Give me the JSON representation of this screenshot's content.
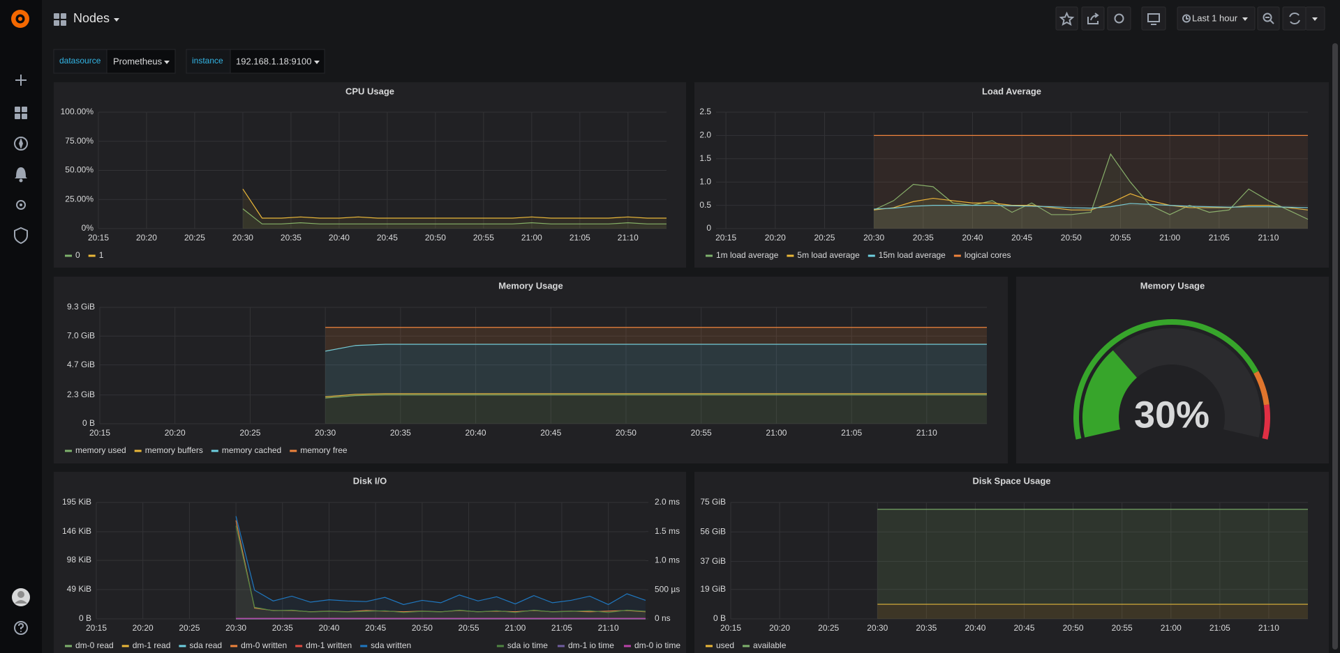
{
  "header": {
    "title": "Nodes",
    "time_range": "Last 1 hour"
  },
  "variables": [
    {
      "label": "datasource",
      "value": "Prometheus"
    },
    {
      "label": "instance",
      "value": "192.168.1.18:9100"
    }
  ],
  "chart_data": [
    {
      "type": "line",
      "title": "CPU Usage",
      "grid": true,
      "x": [
        "20:30",
        "20:32",
        "20:34",
        "20:36",
        "20:38",
        "20:40",
        "20:42",
        "20:44",
        "20:46",
        "20:48",
        "20:50",
        "20:52",
        "20:54",
        "20:56",
        "20:58",
        "21:00",
        "21:02",
        "21:04",
        "21:06",
        "21:08",
        "21:10",
        "21:12",
        "21:14"
      ],
      "xlim": [
        "20:15",
        "21:14"
      ],
      "xticks": [
        "20:15",
        "20:20",
        "20:25",
        "20:30",
        "20:35",
        "20:40",
        "20:45",
        "20:50",
        "20:55",
        "21:00",
        "21:05",
        "21:10"
      ],
      "ylim": [
        0,
        100
      ],
      "yticks": [
        {
          "value": 0,
          "label": "0%"
        },
        {
          "value": 25,
          "label": "25.00%"
        },
        {
          "value": 50,
          "label": "50.00%"
        },
        {
          "value": 75,
          "label": "75.00%"
        },
        {
          "value": 100,
          "label": "100.00%"
        }
      ],
      "series": [
        {
          "name": "0",
          "color": "#7eb26d",
          "values": [
            17,
            4,
            4,
            5,
            4,
            4,
            4,
            4,
            4,
            4,
            4,
            4,
            4,
            4,
            4,
            5,
            4,
            4,
            4,
            4,
            5,
            4,
            4
          ]
        },
        {
          "name": "1",
          "color": "#eab839",
          "values": [
            34,
            9,
            9,
            10,
            9,
            9,
            10,
            9,
            9,
            9,
            9,
            9,
            9,
            9,
            9,
            10,
            9,
            9,
            9,
            9,
            10,
            9,
            9
          ]
        }
      ]
    },
    {
      "type": "line",
      "title": "Load Average",
      "grid": true,
      "x": [
        "20:30",
        "20:32",
        "20:34",
        "20:36",
        "20:38",
        "20:40",
        "20:42",
        "20:44",
        "20:46",
        "20:48",
        "20:50",
        "20:52",
        "20:54",
        "20:56",
        "20:58",
        "21:00",
        "21:02",
        "21:04",
        "21:06",
        "21:08",
        "21:10",
        "21:12",
        "21:14"
      ],
      "xlim": [
        "20:14",
        "21:14"
      ],
      "xticks": [
        "20:15",
        "20:20",
        "20:25",
        "20:30",
        "20:35",
        "20:40",
        "20:45",
        "20:50",
        "20:55",
        "21:00",
        "21:05",
        "21:10"
      ],
      "ylim": [
        0,
        2.5
      ],
      "yticks": [
        0,
        0.5,
        {
          "value": 1,
          "label": "1.0"
        },
        1.5,
        {
          "value": 2,
          "label": "2.0"
        },
        2.5
      ],
      "series": [
        {
          "name": "1m load average",
          "color": "#7eb26d",
          "values": [
            0.4,
            0.6,
            0.95,
            0.9,
            0.55,
            0.5,
            0.6,
            0.35,
            0.55,
            0.3,
            0.3,
            0.35,
            1.6,
            1.0,
            0.5,
            0.3,
            0.5,
            0.35,
            0.4,
            0.85,
            0.6,
            0.4,
            0.2
          ]
        },
        {
          "name": "5m load average",
          "color": "#eab839",
          "values": [
            0.4,
            0.45,
            0.58,
            0.65,
            0.6,
            0.55,
            0.55,
            0.5,
            0.5,
            0.45,
            0.4,
            0.4,
            0.55,
            0.75,
            0.6,
            0.5,
            0.45,
            0.45,
            0.45,
            0.5,
            0.5,
            0.45,
            0.4
          ]
        },
        {
          "name": "15m load average",
          "color": "#6ed0e0",
          "values": [
            0.42,
            0.44,
            0.48,
            0.5,
            0.5,
            0.5,
            0.5,
            0.49,
            0.48,
            0.47,
            0.45,
            0.44,
            0.47,
            0.54,
            0.52,
            0.5,
            0.48,
            0.47,
            0.46,
            0.47,
            0.47,
            0.46,
            0.45
          ]
        },
        {
          "name": "logical cores",
          "color": "#ef843c",
          "values": [
            2,
            2,
            2,
            2,
            2,
            2,
            2,
            2,
            2,
            2,
            2,
            2,
            2,
            2,
            2,
            2,
            2,
            2,
            2,
            2,
            2,
            2,
            2
          ]
        }
      ]
    },
    {
      "type": "line",
      "title": "Memory Usage",
      "grid": true,
      "stacked": true,
      "x": [
        "20:30",
        "20:32",
        "20:34",
        "20:36",
        "20:38",
        "20:40",
        "20:42",
        "20:44",
        "20:46",
        "20:48",
        "20:50",
        "20:52",
        "20:54",
        "20:56",
        "20:58",
        "21:00",
        "21:02",
        "21:04",
        "21:06",
        "21:08",
        "21:10",
        "21:12",
        "21:14"
      ],
      "xlim": [
        "20:15",
        "21:14"
      ],
      "xticks": [
        "20:15",
        "20:20",
        "20:25",
        "20:30",
        "20:35",
        "20:40",
        "20:45",
        "20:50",
        "20:55",
        "21:00",
        "21:05",
        "21:10"
      ],
      "ylim": [
        0,
        9.3
      ],
      "yticks": [
        {
          "value": 0,
          "label": "0 B"
        },
        {
          "value": 2.3,
          "label": "2.3 GiB"
        },
        {
          "value": 4.7,
          "label": "4.7 GiB"
        },
        {
          "value": 7.0,
          "label": "7.0 GiB"
        },
        {
          "value": 9.3,
          "label": "9.3 GiB"
        }
      ],
      "series": [
        {
          "name": "memory used",
          "color": "#7eb26d",
          "values": [
            2.05,
            2.25,
            2.3,
            2.3,
            2.3,
            2.3,
            2.3,
            2.3,
            2.3,
            2.3,
            2.3,
            2.3,
            2.3,
            2.3,
            2.3,
            2.3,
            2.3,
            2.3,
            2.3,
            2.3,
            2.3,
            2.3,
            2.3
          ]
        },
        {
          "name": "memory buffers",
          "color": "#eab839",
          "values": [
            0.1,
            0.1,
            0.1,
            0.1,
            0.1,
            0.1,
            0.1,
            0.1,
            0.1,
            0.1,
            0.1,
            0.1,
            0.1,
            0.1,
            0.1,
            0.1,
            0.1,
            0.1,
            0.1,
            0.1,
            0.1,
            0.1,
            0.1
          ]
        },
        {
          "name": "memory cached",
          "color": "#6ed0e0",
          "values": [
            3.65,
            3.9,
            3.95,
            3.95,
            3.95,
            3.95,
            3.95,
            3.95,
            3.95,
            3.95,
            3.95,
            3.95,
            3.95,
            3.95,
            3.95,
            3.95,
            3.95,
            3.95,
            3.95,
            3.95,
            3.95,
            3.95,
            3.95
          ]
        },
        {
          "name": "memory free",
          "color": "#ef843c",
          "values": [
            1.9,
            1.45,
            1.35,
            1.35,
            1.35,
            1.35,
            1.35,
            1.35,
            1.35,
            1.35,
            1.35,
            1.35,
            1.35,
            1.35,
            1.35,
            1.35,
            1.35,
            1.35,
            1.35,
            1.35,
            1.35,
            1.35,
            1.35
          ]
        }
      ]
    },
    {
      "type": "gauge",
      "title": "Memory Usage",
      "value": 30,
      "value_label": "30%",
      "lim": [
        0,
        100
      ],
      "thresholds": [
        80,
        90
      ],
      "colors": [
        "#37a52b",
        "#e0752d",
        "#e02f44"
      ]
    },
    {
      "type": "line",
      "title": "Disk I/O",
      "grid": true,
      "x": [
        "20:30",
        "20:32",
        "20:34",
        "20:36",
        "20:38",
        "20:40",
        "20:42",
        "20:44",
        "20:46",
        "20:48",
        "20:50",
        "20:52",
        "20:54",
        "20:56",
        "20:58",
        "21:00",
        "21:02",
        "21:04",
        "21:06",
        "21:08",
        "21:10",
        "21:12",
        "21:14"
      ],
      "xlim": [
        "20:15",
        "21:14"
      ],
      "xticks": [
        "20:15",
        "20:20",
        "20:25",
        "20:30",
        "20:35",
        "20:40",
        "20:45",
        "20:50",
        "20:55",
        "21:00",
        "21:05",
        "21:10"
      ],
      "ylim": [
        0,
        195
      ],
      "yticks": [
        {
          "value": 0,
          "label": "0 B"
        },
        {
          "value": 49,
          "label": "49 KiB"
        },
        {
          "value": 98,
          "label": "98 KiB"
        },
        {
          "value": 146,
          "label": "146 KiB"
        },
        {
          "value": 195,
          "label": "195 KiB"
        }
      ],
      "y2lim": [
        0,
        2
      ],
      "y2ticks": [
        {
          "value": 0,
          "label": "0 ns"
        },
        {
          "value": 0.5,
          "label": "500 µs"
        },
        {
          "value": 1.0,
          "label": "1.0 ms"
        },
        {
          "value": 1.5,
          "label": "1.5 ms"
        },
        {
          "value": 2.0,
          "label": "2.0 ms"
        }
      ],
      "series": [
        {
          "name": "dm-0 read",
          "color": "#7eb26d",
          "values": [
            0,
            0,
            0,
            0,
            0,
            0,
            0,
            0,
            0,
            0,
            0,
            0,
            0,
            0,
            0,
            0,
            0,
            0,
            0,
            0,
            0,
            0,
            0
          ]
        },
        {
          "name": "dm-1 read",
          "color": "#eab839",
          "values": [
            0,
            0,
            0,
            0,
            0,
            0,
            0,
            0,
            0,
            0,
            0,
            0,
            0,
            0,
            0,
            0,
            0,
            0,
            0,
            0,
            0,
            0,
            0
          ]
        },
        {
          "name": "sda read",
          "color": "#6ed0e0",
          "values": [
            0,
            0,
            0,
            0,
            0,
            0,
            0,
            0,
            0,
            0,
            0,
            0,
            0,
            0,
            0,
            0,
            0,
            0,
            0,
            0,
            0,
            0,
            0
          ]
        },
        {
          "name": "dm-0 written",
          "color": "#ef843c",
          "values": [
            165,
            18,
            14,
            14,
            12,
            13,
            12,
            14,
            13,
            12,
            13,
            12,
            14,
            12,
            13,
            12,
            14,
            12,
            13,
            12,
            13,
            14,
            12
          ]
        },
        {
          "name": "dm-1 written",
          "color": "#e24d42",
          "values": [
            0,
            0,
            0,
            0,
            0,
            0,
            0,
            0,
            0,
            0,
            0,
            0,
            0,
            0,
            0,
            0,
            0,
            0,
            0,
            0,
            0,
            0,
            0
          ]
        },
        {
          "name": "sda written",
          "color": "#1f78c1",
          "values": [
            172,
            48,
            30,
            38,
            28,
            32,
            30,
            29,
            36,
            24,
            31,
            27,
            40,
            30,
            37,
            25,
            39,
            27,
            31,
            38,
            24,
            42,
            31
          ]
        },
        {
          "name": "sda io time",
          "color": "#508642",
          "axis": "y2",
          "values": [
            1.6,
            0.2,
            0.14,
            0.15,
            0.12,
            0.13,
            0.12,
            0.13,
            0.14,
            0.11,
            0.13,
            0.12,
            0.15,
            0.12,
            0.14,
            0.11,
            0.15,
            0.12,
            0.13,
            0.14,
            0.11,
            0.15,
            0.13
          ]
        },
        {
          "name": "dm-1 io time",
          "color": "#705da0",
          "axis": "y2",
          "values": [
            0,
            0,
            0,
            0,
            0,
            0,
            0,
            0,
            0,
            0,
            0,
            0,
            0,
            0,
            0,
            0,
            0,
            0,
            0,
            0,
            0,
            0,
            0
          ]
        },
        {
          "name": "dm-0 io time",
          "color": "#ba43a9",
          "axis": "y2",
          "values": [
            0.01,
            0.01,
            0.01,
            0.01,
            0.01,
            0.01,
            0.01,
            0.01,
            0.01,
            0.01,
            0.01,
            0.01,
            0.01,
            0.01,
            0.01,
            0.01,
            0.01,
            0.01,
            0.01,
            0.01,
            0.01,
            0.01,
            0.01
          ]
        }
      ]
    },
    {
      "type": "line",
      "title": "Disk Space Usage",
      "grid": true,
      "stacked": true,
      "x": [
        "20:30",
        "20:32",
        "20:34",
        "20:36",
        "20:38",
        "20:40",
        "20:42",
        "20:44",
        "20:46",
        "20:48",
        "20:50",
        "20:52",
        "20:54",
        "20:56",
        "20:58",
        "21:00",
        "21:02",
        "21:04",
        "21:06",
        "21:08",
        "21:10",
        "21:12",
        "21:14"
      ],
      "xlim": [
        "20:15",
        "21:14"
      ],
      "xticks": [
        "20:15",
        "20:20",
        "20:25",
        "20:30",
        "20:35",
        "20:40",
        "20:45",
        "20:50",
        "20:55",
        "21:00",
        "21:05",
        "21:10"
      ],
      "ylim": [
        0,
        75
      ],
      "yticks": [
        {
          "value": 0,
          "label": "0 B"
        },
        {
          "value": 19,
          "label": "19 GiB"
        },
        {
          "value": 37,
          "label": "37 GiB"
        },
        {
          "value": 56,
          "label": "56 GiB"
        },
        {
          "value": 75,
          "label": "75 GiB"
        }
      ],
      "series": [
        {
          "name": "used",
          "color": "#eab839",
          "values": [
            9.4,
            9.4,
            9.4,
            9.4,
            9.4,
            9.4,
            9.4,
            9.4,
            9.4,
            9.4,
            9.4,
            9.4,
            9.4,
            9.4,
            9.4,
            9.4,
            9.4,
            9.4,
            9.4,
            9.4,
            9.4,
            9.4,
            9.4
          ]
        },
        {
          "name": "available",
          "color": "#7eb26d",
          "values": [
            61.2,
            61.2,
            61.2,
            61.2,
            61.2,
            61.2,
            61.2,
            61.2,
            61.2,
            61.2,
            61.2,
            61.2,
            61.2,
            61.2,
            61.2,
            61.2,
            61.2,
            61.2,
            61.2,
            61.2,
            61.2,
            61.2,
            61.2
          ]
        }
      ]
    }
  ]
}
